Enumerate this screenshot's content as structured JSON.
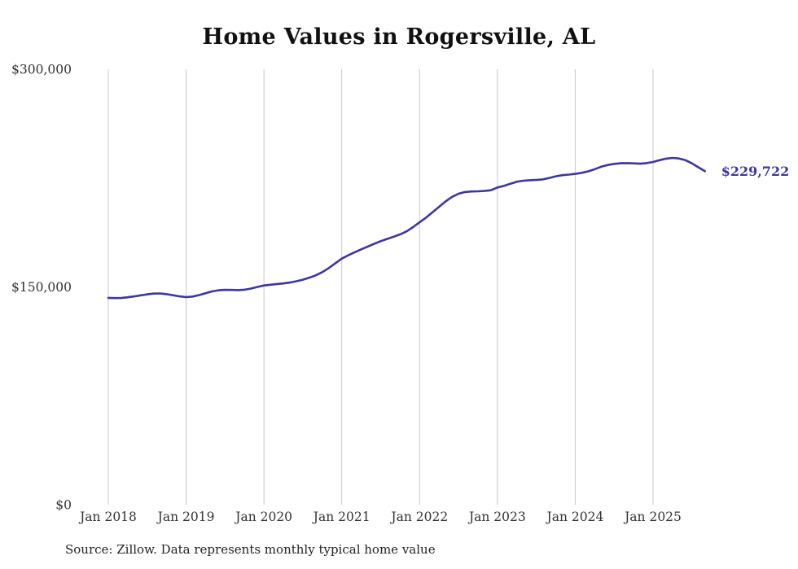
{
  "title": "Home Values in Rogersville, AL",
  "source_note": "Source: Zillow. Data represents monthly typical home value",
  "chart_data": {
    "type": "line",
    "title": "Home Values in Rogersville, AL",
    "series_name": "Monthly typical home value",
    "x_start": "Jan 2018",
    "frequency": "monthly",
    "x_tick_labels": [
      "Jan 2018",
      "Jan 2019",
      "Jan 2020",
      "Jan 2021",
      "Jan 2022",
      "Jan 2023",
      "Jan 2024",
      "Jan 2025"
    ],
    "y_tick_labels": [
      "$0",
      "$150,000",
      "$300,000"
    ],
    "y_ticks": [
      0,
      150000,
      300000
    ],
    "ylim": [
      0,
      300000
    ],
    "grid": "vertical-only",
    "legend": "none",
    "line_color": "#3b36a8",
    "grid_color": "#c9c9c9",
    "tick_label_color": "#333333",
    "last_value": 229722,
    "last_value_label": "$229,722",
    "values": [
      142500,
      142300,
      142400,
      142900,
      143500,
      144200,
      144900,
      145400,
      145500,
      145000,
      144300,
      143500,
      143000,
      143400,
      144400,
      145700,
      146900,
      147700,
      148000,
      147900,
      147800,
      148100,
      148900,
      150000,
      151000,
      151500,
      152000,
      152400,
      153000,
      153900,
      155000,
      156400,
      158000,
      160200,
      163000,
      166300,
      169500,
      171800,
      173900,
      175900,
      177800,
      179700,
      181500,
      183100,
      184600,
      186200,
      188300,
      191200,
      194500,
      197800,
      201400,
      205200,
      208900,
      212000,
      214200,
      215400,
      215800,
      215900,
      216100,
      216600,
      218500,
      219600,
      221100,
      222500,
      223200,
      223500,
      223700,
      224100,
      225100,
      226200,
      227000,
      227400,
      227900,
      228600,
      229600,
      231100,
      232800,
      234000,
      234800,
      235200,
      235300,
      235100,
      234900,
      235300,
      236100,
      237300,
      238400,
      238900,
      238500,
      237300,
      235100,
      232400,
      229722
    ]
  }
}
